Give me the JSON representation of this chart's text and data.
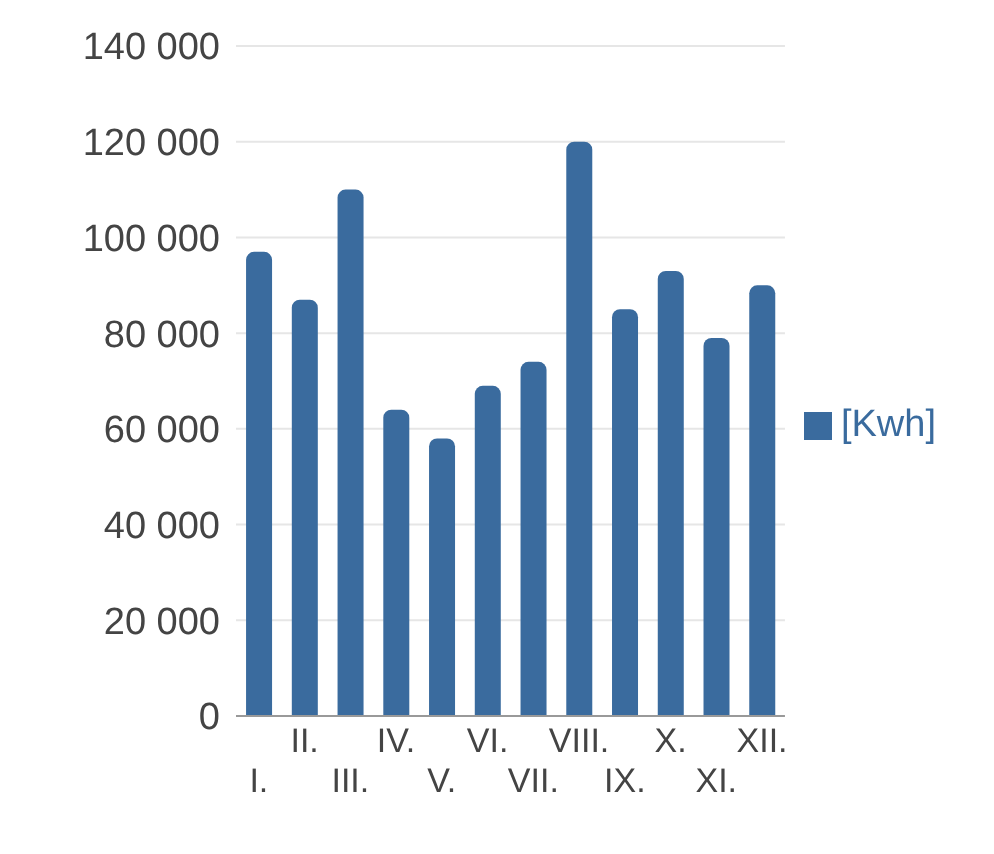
{
  "chart_data": {
    "type": "bar",
    "categories": [
      "I.",
      "II.",
      "III.",
      "IV.",
      "V.",
      "VI.",
      "VII.",
      "VIII.",
      "IX.",
      "X.",
      "XI.",
      "XII."
    ],
    "series": [
      {
        "name": "[Kwh]",
        "color": "#3a6b9e",
        "values": [
          97000,
          87000,
          110000,
          64000,
          58000,
          69000,
          74000,
          120000,
          85000,
          93000,
          79000,
          90000
        ]
      }
    ],
    "ylim": [
      0,
      140000
    ],
    "yticks": [
      {
        "value": 0,
        "label": "0"
      },
      {
        "value": 20000,
        "label": "20 000"
      },
      {
        "value": 40000,
        "label": "40 000"
      },
      {
        "value": 60000,
        "label": "60 000"
      },
      {
        "value": 80000,
        "label": "80 000"
      },
      {
        "value": 100000,
        "label": "100 000"
      },
      {
        "value": 120000,
        "label": "120 000"
      },
      {
        "value": 140000,
        "label": "140 000"
      }
    ],
    "grid": "y",
    "legend": "right"
  }
}
